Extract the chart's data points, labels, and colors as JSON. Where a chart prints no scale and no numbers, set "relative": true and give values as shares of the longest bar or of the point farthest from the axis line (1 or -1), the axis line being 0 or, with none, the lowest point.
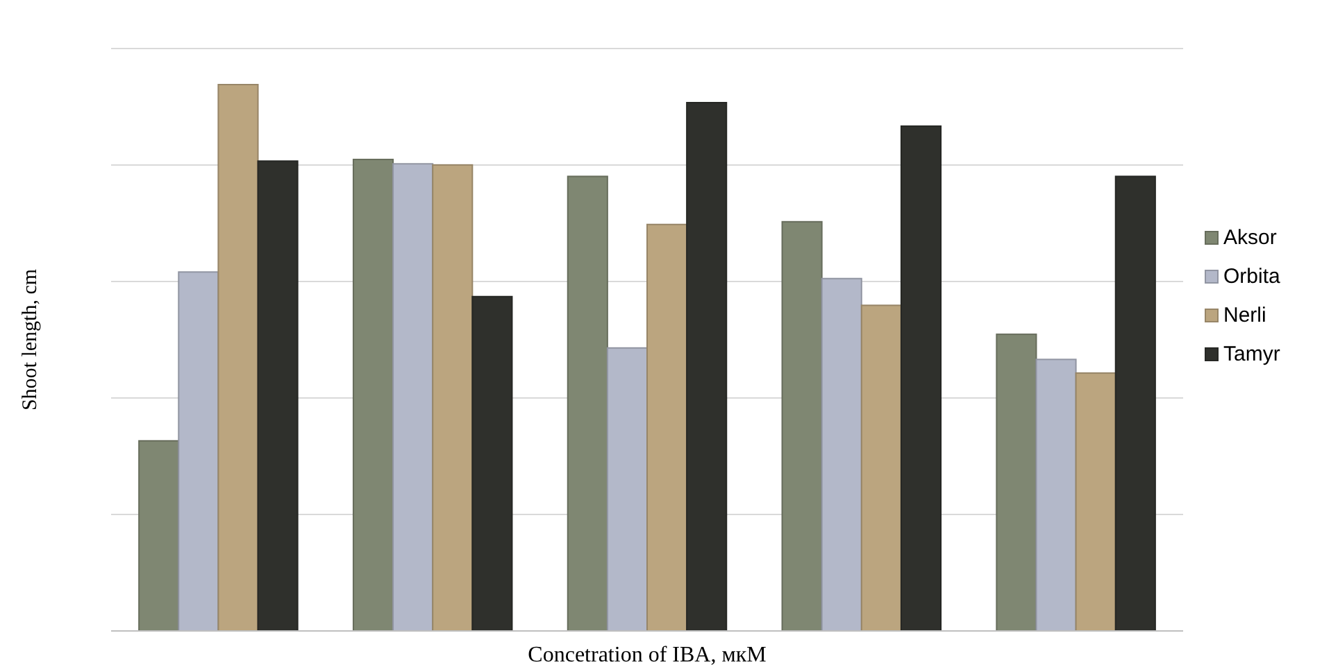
{
  "chart_data": {
    "type": "bar",
    "xlabel": "Concetration of IBA, мкМ",
    "ylabel": "Shoot length, cm",
    "relative": true,
    "grid": "y",
    "legend": "right",
    "categories": [
      null,
      null,
      null,
      null,
      null
    ],
    "series": [
      {
        "name": "Aksor",
        "color": "#7f8772",
        "values": [
          0.348,
          0.863,
          0.832,
          0.749,
          0.543
        ]
      },
      {
        "name": "Orbita",
        "color": "#b3b8c9",
        "values": [
          0.657,
          0.855,
          0.518,
          0.645,
          0.497
        ]
      },
      {
        "name": "Nerli",
        "color": "#bba57f",
        "values": [
          1,
          0.853,
          0.744,
          0.596,
          0.472
        ]
      },
      {
        "name": "Tamyr",
        "color": "#2f302c",
        "values": [
          0.86,
          0.612,
          0.967,
          0.924,
          0.832
        ]
      }
    ]
  }
}
